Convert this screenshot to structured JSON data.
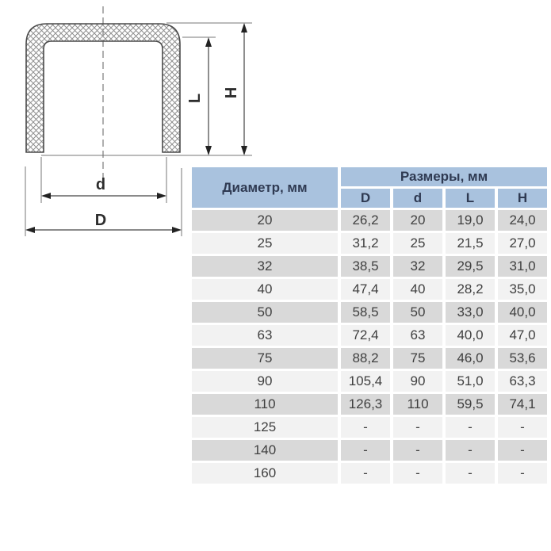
{
  "diagram": {
    "labels": {
      "inner_diameter": "d",
      "outer_diameter": "D",
      "inner_length": "L",
      "outer_height": "H"
    }
  },
  "table": {
    "diameter_header": "Диаметр, мм",
    "sizes_header": "Размеры, мм",
    "size_columns": [
      "D",
      "d",
      "L",
      "H"
    ],
    "rows": [
      {
        "diameter": "20",
        "values": [
          "26,2",
          "20",
          "19,0",
          "24,0"
        ]
      },
      {
        "diameter": "25",
        "values": [
          "31,2",
          "25",
          "21,5",
          "27,0"
        ]
      },
      {
        "diameter": "32",
        "values": [
          "38,5",
          "32",
          "29,5",
          "31,0"
        ]
      },
      {
        "diameter": "40",
        "values": [
          "47,4",
          "40",
          "28,2",
          "35,0"
        ]
      },
      {
        "diameter": "50",
        "values": [
          "58,5",
          "50",
          "33,0",
          "40,0"
        ]
      },
      {
        "diameter": "63",
        "values": [
          "72,4",
          "63",
          "40,0",
          "47,0"
        ]
      },
      {
        "diameter": "75",
        "values": [
          "88,2",
          "75",
          "46,0",
          "53,6"
        ]
      },
      {
        "diameter": "90",
        "values": [
          "105,4",
          "90",
          "51,0",
          "63,3"
        ]
      },
      {
        "diameter": "110",
        "values": [
          "126,3",
          "110",
          "59,5",
          "74,1"
        ]
      },
      {
        "diameter": "125",
        "values": [
          "-",
          "-",
          "-",
          "-"
        ]
      },
      {
        "diameter": "140",
        "values": [
          "-",
          "-",
          "-",
          "-"
        ]
      },
      {
        "diameter": "160",
        "values": [
          "-",
          "-",
          "-",
          "-"
        ]
      }
    ]
  },
  "colors": {
    "header_bg": "#a9c2de",
    "header_text": "#2f3a52",
    "row_dark": "#d9d9d9",
    "row_light": "#f2f2f2",
    "cell_text": "#3f3f3f",
    "outline": "#4a4a4a",
    "dimension_line": "#444444"
  }
}
